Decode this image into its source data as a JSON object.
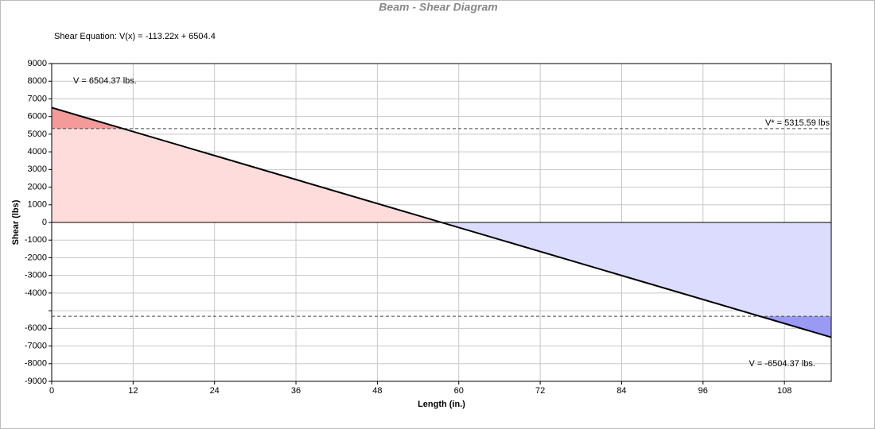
{
  "chart_data": {
    "type": "line",
    "title": "Beam - Shear Diagram",
    "equation": "Shear Equation:  V(x) = -113.22x + 6504.4",
    "xlabel": "Length (in.)",
    "ylabel": "Shear (lbs)",
    "x": [
      0,
      114.9
    ],
    "series": [
      {
        "name": "Shear",
        "color": "#000000",
        "values": [
          6504.37,
          -6504.37
        ]
      }
    ],
    "xlim": [
      0,
      114.9
    ],
    "ylim": [
      -9000,
      9000
    ],
    "xticks": [
      0,
      12,
      24,
      36,
      48,
      60,
      72,
      84,
      96,
      108
    ],
    "yticks": [
      9000,
      8000,
      7000,
      6000,
      5000,
      4000,
      3000,
      2000,
      1000,
      0,
      -1000,
      -2000,
      -3000,
      -4000,
      {
        "value": -5000,
        "label": null
      },
      -6000,
      -7000,
      -8000,
      -9000
    ],
    "grid": true,
    "thresholds": [
      {
        "value": 5315.59,
        "label": "V* = 5315.59 lbs"
      },
      {
        "value": -5315.59
      }
    ],
    "annotations": [
      "V = 6504.37 lbs.",
      "V = -6504.37 lbs."
    ],
    "fill_colors": {
      "positive": "#ffdcdc",
      "positive_over": "#f59a9a",
      "negative": "#dcdcff",
      "negative_over": "#9a9af5"
    }
  }
}
